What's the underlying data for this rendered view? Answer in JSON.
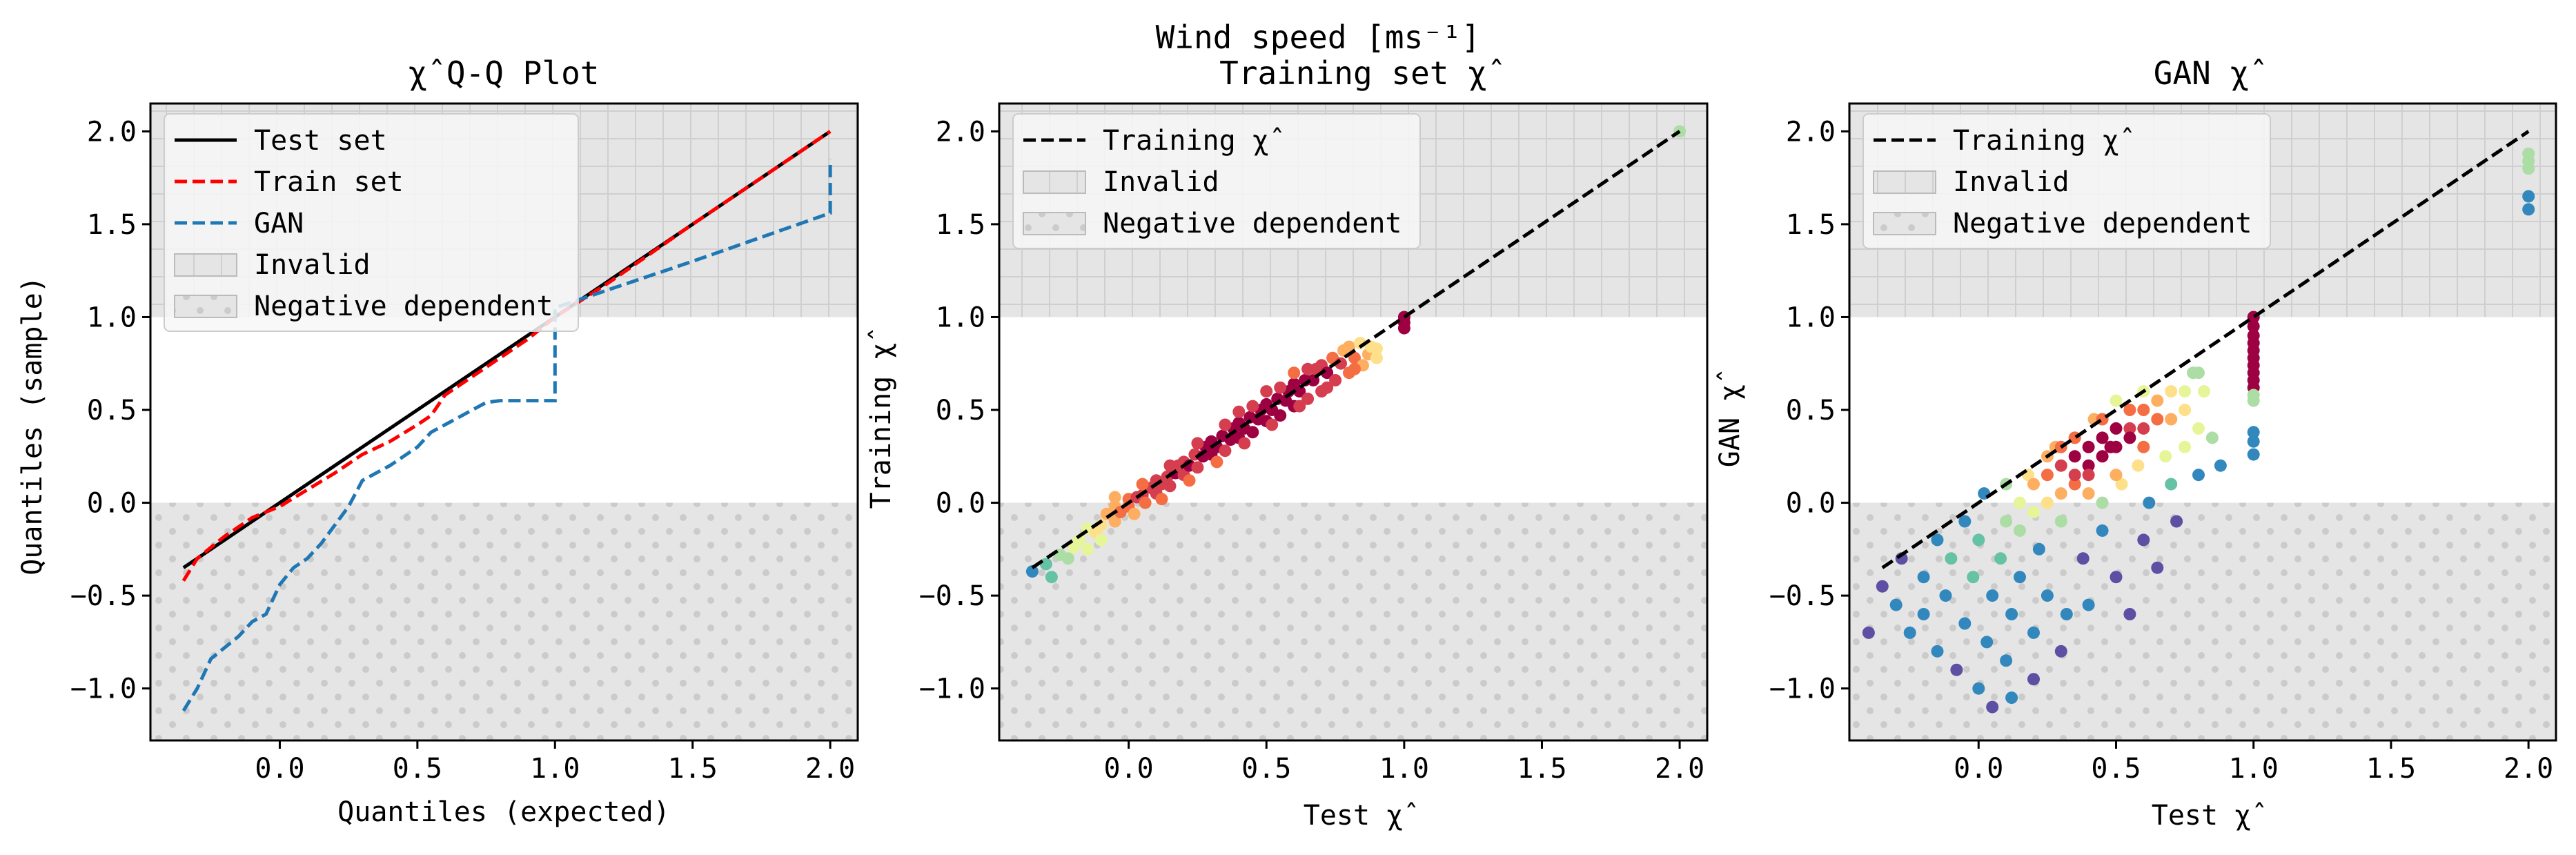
{
  "figure": {
    "suptitle": "Wind speed [ms⁻¹]"
  },
  "chart_data": [
    {
      "type": "line",
      "title": "χ̂ Q-Q Plot",
      "xlabel": "Quantiles (expected)",
      "ylabel": "Quantiles (sample)",
      "xlim": [
        -0.47,
        2.1
      ],
      "ylim": [
        -1.28,
        2.15
      ],
      "xticks": [
        0.0,
        0.5,
        1.0,
        1.5,
        2.0
      ],
      "yticks": [
        -1.0,
        -0.5,
        0.0,
        0.5,
        1.0,
        1.5,
        2.0
      ],
      "regions": [
        {
          "name": "Invalid",
          "y_range": [
            1.0,
            2.15
          ],
          "fill": "#e5e5e5",
          "hatch": "grid"
        },
        {
          "name": "Negative dependent",
          "y_range": [
            -1.28,
            0.0
          ],
          "fill": "#e5e5e5",
          "hatch": "dots"
        }
      ],
      "legend_position": "upper-left",
      "legend": [
        "Test set",
        "Train set",
        "GAN",
        "Invalid",
        "Negative dependent"
      ],
      "series": [
        {
          "name": "Test set",
          "color": "#000000",
          "dash": "solid",
          "x": [
            -0.35,
            2.0
          ],
          "y": [
            -0.35,
            2.0
          ]
        },
        {
          "name": "Train set",
          "color": "#ff0000",
          "dash": "dashed",
          "x": [
            -0.35,
            -0.3,
            -0.2,
            -0.1,
            0.0,
            0.1,
            0.2,
            0.3,
            0.4,
            0.5,
            0.55,
            0.6,
            0.7,
            0.8,
            0.9,
            0.95,
            1.0,
            1.2,
            1.5,
            1.8,
            2.0
          ],
          "y": [
            -0.42,
            -0.3,
            -0.18,
            -0.08,
            -0.02,
            0.07,
            0.16,
            0.26,
            0.33,
            0.42,
            0.47,
            0.58,
            0.68,
            0.78,
            0.88,
            0.94,
            1.0,
            1.19,
            1.5,
            1.8,
            2.0
          ]
        },
        {
          "name": "GAN",
          "color": "#1f77b4",
          "dash": "dashed",
          "x": [
            -0.35,
            -0.3,
            -0.25,
            -0.15,
            -0.1,
            -0.05,
            0.0,
            0.05,
            0.1,
            0.15,
            0.25,
            0.3,
            0.4,
            0.5,
            0.55,
            0.65,
            0.7,
            0.75,
            0.8,
            0.9,
            1.0,
            1.0,
            1.0,
            1.5,
            2.0,
            2.0,
            2.0
          ],
          "y": [
            -1.12,
            -1.0,
            -0.84,
            -0.72,
            -0.64,
            -0.6,
            -0.44,
            -0.35,
            -0.3,
            -0.22,
            -0.02,
            0.12,
            0.2,
            0.3,
            0.38,
            0.46,
            0.5,
            0.54,
            0.55,
            0.55,
            0.55,
            0.56,
            1.05,
            1.3,
            1.56,
            1.58,
            1.85
          ]
        }
      ]
    },
    {
      "type": "scatter",
      "title": "Training set χ̂",
      "xlabel": "Test χ̂",
      "ylabel": "Training χ̂",
      "xlim": [
        -0.47,
        2.1
      ],
      "ylim": [
        -1.28,
        2.15
      ],
      "xticks": [
        0.0,
        0.5,
        1.0,
        1.5,
        2.0
      ],
      "yticks": [
        -1.0,
        -0.5,
        0.0,
        0.5,
        1.0,
        1.5,
        2.0
      ],
      "regions": [
        {
          "name": "Invalid",
          "y_range": [
            1.0,
            2.15
          ],
          "fill": "#e5e5e5",
          "hatch": "grid"
        },
        {
          "name": "Negative dependent",
          "y_range": [
            -1.28,
            0.0
          ],
          "fill": "#e5e5e5",
          "hatch": "dots"
        }
      ],
      "legend_position": "upper-left",
      "legend": [
        "Training χ̂",
        "Invalid",
        "Negative dependent"
      ],
      "reference_line": {
        "name": "Training χ̂",
        "color": "#000000",
        "dash": "dashed",
        "x": [
          -0.35,
          2.0
        ],
        "y": [
          -0.35,
          2.0
        ]
      },
      "color_scale": "Spectral_r (point density)",
      "points": [
        [
          -0.35,
          -0.37
        ],
        [
          -0.3,
          -0.33
        ],
        [
          -0.28,
          -0.4
        ],
        [
          -0.25,
          -0.28
        ],
        [
          -0.22,
          -0.3
        ],
        [
          -0.2,
          -0.24
        ],
        [
          -0.18,
          -0.2
        ],
        [
          -0.15,
          -0.25
        ],
        [
          -0.15,
          -0.14
        ],
        [
          -0.12,
          -0.16
        ],
        [
          -0.1,
          -0.12
        ],
        [
          -0.1,
          -0.2
        ],
        [
          -0.08,
          -0.06
        ],
        [
          -0.05,
          -0.1
        ],
        [
          -0.05,
          -0.02
        ],
        [
          -0.03,
          -0.05
        ],
        [
          0.0,
          -0.02
        ],
        [
          0.0,
          0.02
        ],
        [
          0.02,
          -0.06
        ],
        [
          0.03,
          0.03
        ],
        [
          0.05,
          0.04
        ],
        [
          0.06,
          0.0
        ],
        [
          0.08,
          0.08
        ],
        [
          0.1,
          0.05
        ],
        [
          0.1,
          0.12
        ],
        [
          0.12,
          0.1
        ],
        [
          0.14,
          0.14
        ],
        [
          0.15,
          0.09
        ],
        [
          0.17,
          0.16
        ],
        [
          0.18,
          0.2
        ],
        [
          0.2,
          0.15
        ],
        [
          0.2,
          0.22
        ],
        [
          0.22,
          0.2
        ],
        [
          0.24,
          0.26
        ],
        [
          0.25,
          0.19
        ],
        [
          0.27,
          0.25
        ],
        [
          0.28,
          0.3
        ],
        [
          0.3,
          0.26
        ],
        [
          0.3,
          0.33
        ],
        [
          0.32,
          0.3
        ],
        [
          0.34,
          0.36
        ],
        [
          0.35,
          0.28
        ],
        [
          0.37,
          0.34
        ],
        [
          0.38,
          0.4
        ],
        [
          0.4,
          0.35
        ],
        [
          0.4,
          0.43
        ],
        [
          0.42,
          0.4
        ],
        [
          0.44,
          0.46
        ],
        [
          0.45,
          0.38
        ],
        [
          0.47,
          0.45
        ],
        [
          0.48,
          0.5
        ],
        [
          0.5,
          0.44
        ],
        [
          0.5,
          0.53
        ],
        [
          0.52,
          0.5
        ],
        [
          0.54,
          0.56
        ],
        [
          0.55,
          0.47
        ],
        [
          0.57,
          0.55
        ],
        [
          0.58,
          0.6
        ],
        [
          0.6,
          0.52
        ],
        [
          0.6,
          0.64
        ],
        [
          0.62,
          0.6
        ],
        [
          0.64,
          0.66
        ],
        [
          0.65,
          0.56
        ],
        [
          0.67,
          0.66
        ],
        [
          0.68,
          0.72
        ],
        [
          0.7,
          0.6
        ],
        [
          0.7,
          0.74
        ],
        [
          0.72,
          0.7
        ],
        [
          0.74,
          0.78
        ],
        [
          0.75,
          0.66
        ],
        [
          0.77,
          0.75
        ],
        [
          0.78,
          0.82
        ],
        [
          0.8,
          0.7
        ],
        [
          0.8,
          0.84
        ],
        [
          0.82,
          0.78
        ],
        [
          0.84,
          0.86
        ],
        [
          0.85,
          0.74
        ],
        [
          0.87,
          0.8
        ],
        [
          0.88,
          0.84
        ],
        [
          0.9,
          0.78
        ],
        [
          0.35,
          0.42
        ],
        [
          0.45,
          0.52
        ],
        [
          0.55,
          0.62
        ],
        [
          0.65,
          0.72
        ],
        [
          0.25,
          0.32
        ],
        [
          0.15,
          0.2
        ],
        [
          0.05,
          0.1
        ],
        [
          -0.05,
          0.03
        ],
        [
          0.42,
          0.32
        ],
        [
          0.52,
          0.42
        ],
        [
          0.62,
          0.52
        ],
        [
          0.72,
          0.62
        ],
        [
          0.32,
          0.22
        ],
        [
          0.22,
          0.12
        ],
        [
          0.12,
          0.02
        ],
        [
          0.82,
          0.72
        ],
        [
          0.9,
          0.83
        ],
        [
          0.6,
          0.7
        ],
        [
          0.5,
          0.6
        ],
        [
          0.4,
          0.49
        ],
        [
          1.0,
          1.0
        ],
        [
          1.0,
          0.97
        ],
        [
          1.0,
          0.94
        ],
        [
          2.0,
          2.0
        ]
      ]
    },
    {
      "type": "scatter",
      "title": "GAN χ̂",
      "xlabel": "Test χ̂",
      "ylabel": "GAN χ̂",
      "xlim": [
        -0.47,
        2.1
      ],
      "ylim": [
        -1.28,
        2.15
      ],
      "xticks": [
        0.0,
        0.5,
        1.0,
        1.5,
        2.0
      ],
      "yticks": [
        -1.0,
        -0.5,
        0.0,
        0.5,
        1.0,
        1.5,
        2.0
      ],
      "regions": [
        {
          "name": "Invalid",
          "y_range": [
            1.0,
            2.15
          ],
          "fill": "#e5e5e5",
          "hatch": "grid"
        },
        {
          "name": "Negative dependent",
          "y_range": [
            -1.28,
            0.0
          ],
          "fill": "#e5e5e5",
          "hatch": "dots"
        }
      ],
      "legend_position": "upper-left",
      "legend": [
        "Training χ̂",
        "Invalid",
        "Negative dependent"
      ],
      "reference_line": {
        "name": "Training χ̂",
        "color": "#000000",
        "dash": "dashed",
        "x": [
          -0.35,
          2.0
        ],
        "y": [
          -0.35,
          2.0
        ]
      },
      "color_scale": "Spectral_r (point density)",
      "points": [
        [
          -0.4,
          -0.7
        ],
        [
          -0.35,
          -0.45
        ],
        [
          -0.3,
          -0.55
        ],
        [
          -0.28,
          -0.3
        ],
        [
          -0.25,
          -0.7
        ],
        [
          -0.2,
          -0.4
        ],
        [
          -0.2,
          -0.6
        ],
        [
          -0.15,
          -0.2
        ],
        [
          -0.15,
          -0.8
        ],
        [
          -0.12,
          -0.5
        ],
        [
          -0.1,
          -0.3
        ],
        [
          -0.08,
          -0.9
        ],
        [
          -0.05,
          -0.1
        ],
        [
          -0.05,
          -0.65
        ],
        [
          -0.02,
          -0.4
        ],
        [
          0.0,
          -1.0
        ],
        [
          0.0,
          -0.2
        ],
        [
          0.02,
          0.05
        ],
        [
          0.03,
          -0.75
        ],
        [
          0.05,
          -0.5
        ],
        [
          0.05,
          -1.1
        ],
        [
          0.08,
          -0.3
        ],
        [
          0.1,
          0.1
        ],
        [
          0.1,
          -0.85
        ],
        [
          0.12,
          -0.6
        ],
        [
          0.12,
          -1.05
        ],
        [
          0.15,
          -0.15
        ],
        [
          0.15,
          -0.4
        ],
        [
          0.18,
          0.15
        ],
        [
          0.2,
          -0.95
        ],
        [
          0.2,
          -0.7
        ],
        [
          0.22,
          -0.25
        ],
        [
          0.25,
          0.0
        ],
        [
          0.25,
          -0.5
        ],
        [
          0.28,
          0.3
        ],
        [
          0.3,
          -0.1
        ],
        [
          0.3,
          -0.8
        ],
        [
          0.32,
          -0.6
        ],
        [
          0.35,
          0.35
        ],
        [
          0.35,
          0.1
        ],
        [
          0.38,
          -0.3
        ],
        [
          0.4,
          0.2
        ],
        [
          0.4,
          -0.55
        ],
        [
          0.42,
          0.45
        ],
        [
          0.45,
          -0.15
        ],
        [
          0.45,
          0.0
        ],
        [
          0.48,
          0.3
        ],
        [
          0.5,
          -0.4
        ],
        [
          0.5,
          0.55
        ],
        [
          0.52,
          0.1
        ],
        [
          0.55,
          -0.6
        ],
        [
          0.55,
          0.4
        ],
        [
          0.58,
          0.2
        ],
        [
          0.6,
          0.6
        ],
        [
          0.6,
          -0.2
        ],
        [
          0.62,
          0.0
        ],
        [
          0.65,
          0.45
        ],
        [
          0.65,
          -0.35
        ],
        [
          0.68,
          0.25
        ],
        [
          0.7,
          0.6
        ],
        [
          0.7,
          0.1
        ],
        [
          0.72,
          -0.1
        ],
        [
          0.75,
          0.5
        ],
        [
          0.75,
          0.3
        ],
        [
          0.78,
          0.7
        ],
        [
          0.8,
          0.4
        ],
        [
          0.8,
          0.15
        ],
        [
          0.82,
          0.6
        ],
        [
          0.85,
          0.35
        ],
        [
          0.88,
          0.2
        ],
        [
          0.25,
          0.15
        ],
        [
          0.3,
          0.2
        ],
        [
          0.35,
          0.25
        ],
        [
          0.4,
          0.3
        ],
        [
          0.45,
          0.35
        ],
        [
          0.3,
          0.05
        ],
        [
          0.35,
          0.15
        ],
        [
          0.4,
          0.15
        ],
        [
          0.45,
          0.25
        ],
        [
          0.5,
          0.3
        ],
        [
          0.2,
          0.1
        ],
        [
          0.25,
          0.25
        ],
        [
          0.5,
          0.4
        ],
        [
          0.55,
          0.35
        ],
        [
          0.6,
          0.4
        ],
        [
          0.15,
          0.0
        ],
        [
          0.2,
          -0.05
        ],
        [
          0.1,
          -0.1
        ],
        [
          0.55,
          0.5
        ],
        [
          0.6,
          0.5
        ],
        [
          0.65,
          0.55
        ],
        [
          0.7,
          0.45
        ],
        [
          0.5,
          0.15
        ],
        [
          0.4,
          0.05
        ],
        [
          0.3,
          0.3
        ],
        [
          0.6,
          0.3
        ],
        [
          0.75,
          0.6
        ],
        [
          0.8,
          0.7
        ],
        [
          0.45,
          0.45
        ],
        [
          0.35,
          0.35
        ],
        [
          1.0,
          1.0
        ],
        [
          1.0,
          0.95
        ],
        [
          1.0,
          0.9
        ],
        [
          1.0,
          0.86
        ],
        [
          1.0,
          0.82
        ],
        [
          1.0,
          0.78
        ],
        [
          1.0,
          0.74
        ],
        [
          1.0,
          0.7
        ],
        [
          1.0,
          0.66
        ],
        [
          1.0,
          0.62
        ],
        [
          1.0,
          0.58
        ],
        [
          1.0,
          0.55
        ],
        [
          1.0,
          0.38
        ],
        [
          1.0,
          0.33
        ],
        [
          1.0,
          0.26
        ],
        [
          2.0,
          1.88
        ],
        [
          2.0,
          1.84
        ],
        [
          2.0,
          1.8
        ],
        [
          2.0,
          1.65
        ],
        [
          2.0,
          1.58
        ]
      ]
    }
  ]
}
